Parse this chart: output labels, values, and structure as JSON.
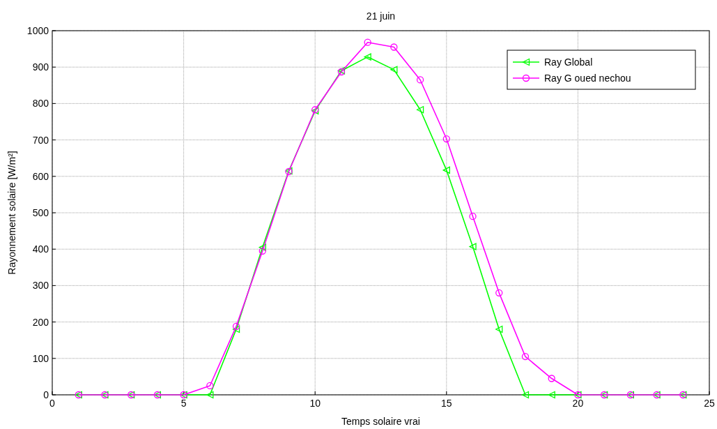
{
  "chart_data": {
    "type": "line",
    "title": "21 juin",
    "xlabel": "Temps solaire vrai",
    "ylabel": "Rayonnement solaire [W/m²]",
    "x": [
      1,
      2,
      3,
      4,
      5,
      6,
      7,
      8,
      9,
      10,
      11,
      12,
      13,
      14,
      15,
      16,
      17,
      18,
      19,
      20,
      21,
      22,
      23,
      24
    ],
    "series": [
      {
        "name": "Ray Global",
        "color": "#00ff00",
        "marker": "triangle",
        "values": [
          0,
          0,
          0,
          0,
          0,
          0,
          180,
          405,
          615,
          780,
          890,
          928,
          893,
          783,
          617,
          407,
          180,
          0,
          0,
          0,
          0,
          0,
          0,
          0
        ]
      },
      {
        "name": "Ray G oued nechou",
        "color": "#ff00ff",
        "marker": "circle",
        "values": [
          0,
          0,
          0,
          0,
          0,
          25,
          188,
          395,
          613,
          783,
          887,
          968,
          955,
          865,
          703,
          490,
          280,
          105,
          45,
          0,
          0,
          0,
          0,
          0
        ]
      }
    ],
    "xlim": [
      0,
      25
    ],
    "xticks": [
      0,
      5,
      10,
      15,
      20,
      25
    ],
    "ylim": [
      0,
      1000
    ],
    "yticks": [
      0,
      100,
      200,
      300,
      400,
      500,
      600,
      700,
      800,
      900,
      1000
    ],
    "grid": true,
    "legend": "top right",
    "line_style": "solid"
  }
}
